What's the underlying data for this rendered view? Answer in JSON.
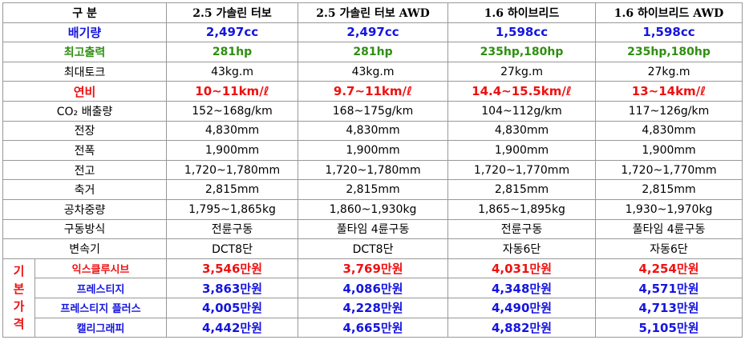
{
  "table": {
    "header": [
      "구 분",
      "2.5 가솔린 터보",
      "2.5 가솔린 터보 AWD",
      "1.6 하이브리드",
      "1.6 하이브리드 AWD"
    ],
    "rows": [
      {
        "label": "배기량",
        "cells": [
          "2,497cc",
          "2,497cc",
          "1,598cc",
          "1,598cc"
        ]
      },
      {
        "label": "최고출력",
        "cells": [
          "281hp",
          "281hp",
          "235hp,180hp",
          "235hp,180hp"
        ]
      },
      {
        "label": "최대토크",
        "cells": [
          "43kg.m",
          "43kg.m",
          "27kg.m",
          "27kg.m"
        ]
      },
      {
        "label": "연비",
        "cells": [
          "10~11km/ℓ",
          "9.7~11km/ℓ",
          "14.4~15.5km/ℓ",
          "13~14km/ℓ"
        ]
      },
      {
        "label": "CO₂ 배출량",
        "cells": [
          "152~168g/km",
          "168~175g/km",
          "104~112g/km",
          "117~126g/km"
        ]
      },
      {
        "label": "전장",
        "cells": [
          "4,830mm",
          "4,830mm",
          "4,830mm",
          "4,830mm"
        ]
      },
      {
        "label": "전폭",
        "cells": [
          "1,900mm",
          "1,900mm",
          "1,900mm",
          "1,900mm"
        ]
      },
      {
        "label": "전고",
        "cells": [
          "1,720~1,780mm",
          "1,720~1,780mm",
          "1,720~1,770mm",
          "1,720~1,770mm"
        ]
      },
      {
        "label": "축거",
        "cells": [
          "2,815mm",
          "2,815mm",
          "2,815mm",
          "2,815mm"
        ]
      },
      {
        "label": "공차중량",
        "cells": [
          "1,795~1,865kg",
          "1,860~1,930kg",
          "1,865~1,895kg",
          "1,930~1,970kg"
        ]
      },
      {
        "label": "구동방식",
        "cells": [
          "전륜구동",
          "풀타임 4륜구동",
          "전륜구동",
          "풀타임 4륜구동"
        ]
      },
      {
        "label": "변속기",
        "cells": [
          "DCT8단",
          "DCT8단",
          "자동6단",
          "자동6단"
        ]
      }
    ],
    "price_group": {
      "label": "기본가격",
      "rows": [
        {
          "label": "익스클루시브",
          "cells": [
            "3,546만원",
            "3,769만원",
            "4,031만원",
            "4,254만원"
          ]
        },
        {
          "label": "프레스티지",
          "cells": [
            "3,863만원",
            "4,086만원",
            "4,348만원",
            "4,571만원"
          ]
        },
        {
          "label": "프레스티지 플러스",
          "cells": [
            "4,005만원",
            "4,228만원",
            "4,490만원",
            "4,713만원"
          ]
        },
        {
          "label": "캘리그래피",
          "cells": [
            "4,442만원",
            "4,665만원",
            "4,882만원",
            "5,105만원"
          ]
        }
      ]
    }
  }
}
